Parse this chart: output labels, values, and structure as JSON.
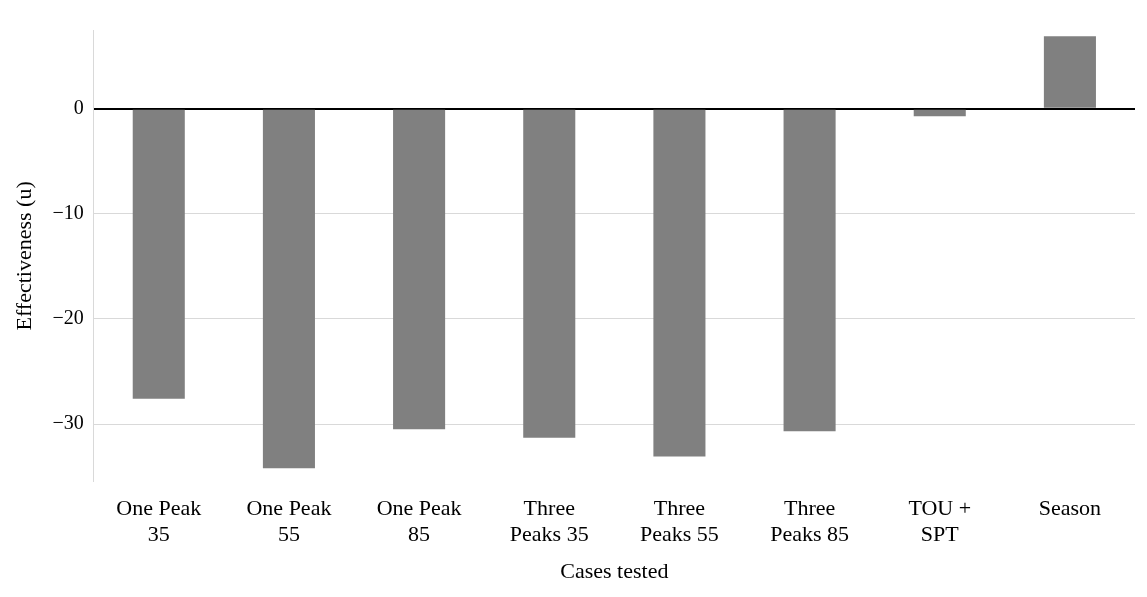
{
  "chart_data": {
    "type": "bar",
    "xlabel": "Cases tested",
    "ylabel": "Effectiveness (u)",
    "categories": [
      "One Peak 35",
      "One Peak 55",
      "One Peak 85",
      "Three Peaks 35",
      "Three Peaks 55",
      "Three Peaks 85",
      "TOU + SPT",
      "Season"
    ],
    "values": [
      -27.6,
      -34.2,
      -30.5,
      -31.3,
      -33.1,
      -30.7,
      -0.7,
      6.9
    ],
    "color": "#808080",
    "ylim": [
      -35.5,
      7.5
    ],
    "yticks": [
      -30,
      -20,
      -10,
      0
    ],
    "grid": "y"
  }
}
